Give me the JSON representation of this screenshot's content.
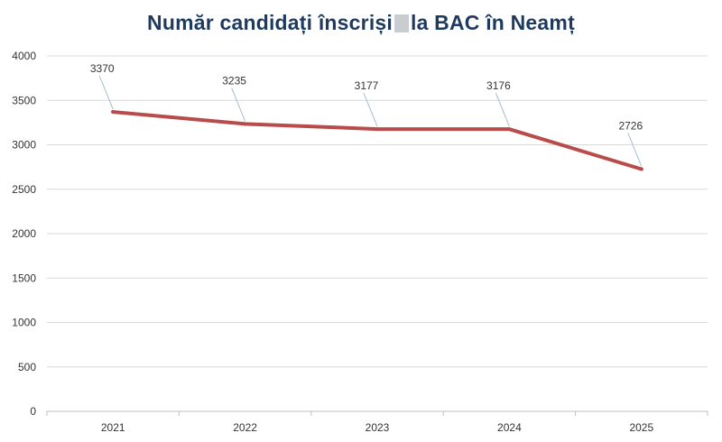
{
  "chart_data": {
    "type": "line",
    "title_before": "Număr candidați înscriși",
    "title_after": "la BAC în Neamț",
    "categories": [
      "2021",
      "2022",
      "2023",
      "2024",
      "2025"
    ],
    "series": [
      {
        "values": [
          3370,
          3235,
          3177,
          3176,
          2726
        ],
        "color": "#b84c4a"
      }
    ],
    "data_labels": [
      "3370",
      "3235",
      "3177",
      "3176",
      "2726"
    ],
    "ylim": [
      0,
      4000
    ],
    "yticks": [
      "0",
      "500",
      "1000",
      "1500",
      "2000",
      "2500",
      "3000",
      "3500",
      "4000"
    ],
    "grid": true,
    "legend": "none",
    "colors": {
      "title": "#1f3a5f",
      "grid": "#d9d9d9",
      "leader": "#a6bccf"
    }
  }
}
